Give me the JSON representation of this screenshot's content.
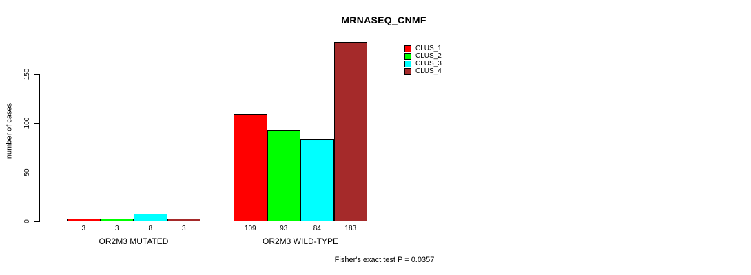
{
  "chart_data": {
    "type": "bar",
    "title": "MRNASEQ_CNMF",
    "ylabel": "number of cases",
    "xlabel": "",
    "categories": [
      "OR2M3 MUTATED",
      "OR2M3 WILD-TYPE"
    ],
    "series": [
      {
        "name": "CLUS_1",
        "color": "#ff0000",
        "values": [
          3,
          109
        ]
      },
      {
        "name": "CLUS_2",
        "color": "#00ff00",
        "values": [
          3,
          93
        ]
      },
      {
        "name": "CLUS_3",
        "color": "#00ffff",
        "values": [
          8,
          84
        ]
      },
      {
        "name": "CLUS_4",
        "color": "#a52a2a",
        "values": [
          3,
          183
        ]
      }
    ],
    "bar_value_labels": [
      [
        3,
        3,
        8,
        3
      ],
      [
        109,
        93,
        84,
        183
      ]
    ],
    "yticks": [
      0,
      50,
      100,
      150
    ],
    "ylim": [
      0,
      185
    ],
    "grid": false,
    "legend_position": "top-right",
    "bar_outline_color": "#000000",
    "annotation": "Fisher's exact test P = 0.0357"
  }
}
